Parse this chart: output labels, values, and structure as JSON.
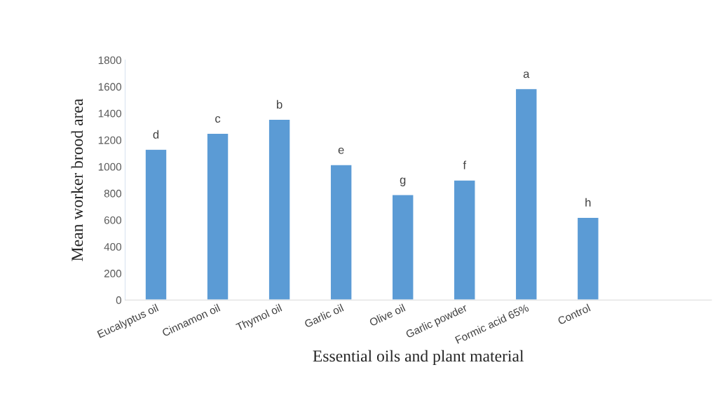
{
  "chart_data": {
    "type": "bar",
    "xlabel": "Essential oils and plant material",
    "ylabel": "Mean worker brood area",
    "categories": [
      "Eucalyptus oil",
      "Cinnamon oil",
      "Thymol oil",
      "Garlic oil",
      "Olive oil",
      "Garlic powder",
      "Formic acid 65%",
      "Control"
    ],
    "values": [
      1130,
      1250,
      1355,
      1015,
      790,
      900,
      1585,
      620
    ],
    "color": "#5b9bd5",
    "ylim": [
      0,
      1800
    ],
    "yticks": [
      0,
      200,
      400,
      600,
      800,
      1000,
      1200,
      1400,
      1600,
      1800
    ],
    "grid": false,
    "annotations": [
      {
        "text": "d",
        "x": "Eucalyptus oil",
        "y": 1130
      },
      {
        "text": "c",
        "x": "Cinnamon oil",
        "y": 1250
      },
      {
        "text": "b",
        "x": "Thymol oil",
        "y": 1355
      },
      {
        "text": "e",
        "x": "Garlic oil",
        "y": 1015
      },
      {
        "text": "g",
        "x": "Olive oil",
        "y": 790
      },
      {
        "text": "f",
        "x": "Garlic powder",
        "y": 900
      },
      {
        "text": "a",
        "x": "Formic acid 65%",
        "y": 1585
      },
      {
        "text": "h",
        "x": "Control",
        "y": 620
      }
    ]
  }
}
